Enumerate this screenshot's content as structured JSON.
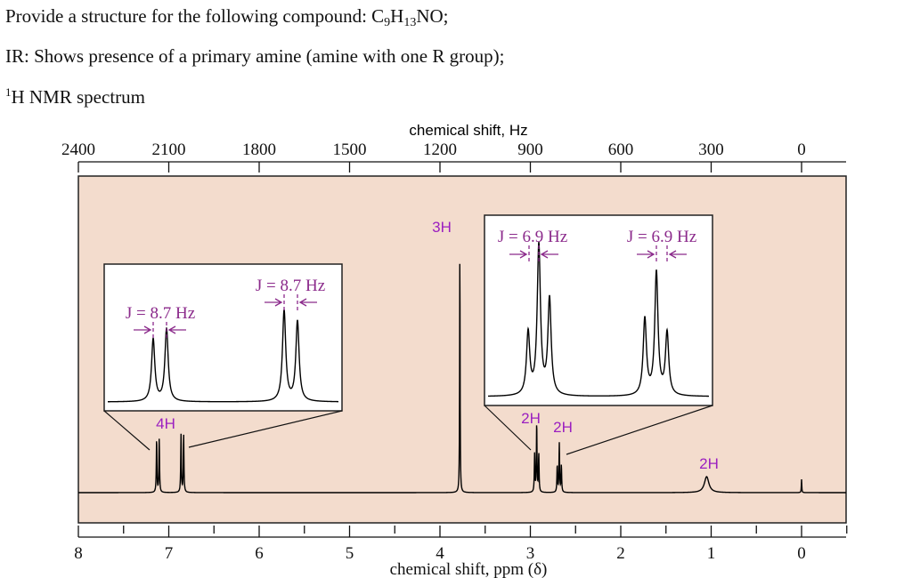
{
  "question": {
    "line1_text": "Provide a structure for the following compound: C",
    "line1_sub1": "9",
    "line1_mid": "H",
    "line1_sub2": "13",
    "line1_end": "NO;",
    "line2": "IR: Shows presence of a primary amine (amine with one R group);",
    "line3_sup": "1",
    "line3": "H NMR spectrum"
  },
  "chart_data": {
    "type": "line",
    "title": "",
    "x_top_label": "chemical shift, Hz",
    "x_bottom_label": "chemical shift, ppm (δ)",
    "x_top_ticks": [
      "2400",
      "2100",
      "1800",
      "1500",
      "1200",
      "900",
      "600",
      "300",
      "0"
    ],
    "x_bottom_ticks": [
      "8",
      "7",
      "6",
      "5",
      "4",
      "3",
      "2",
      "1",
      "0"
    ],
    "xlim_ppm": [
      8.0,
      -0.5
    ],
    "spectrometer_mhz": 300,
    "peaks": [
      {
        "ppm": 7.12,
        "height": 0.6,
        "integration": "4H",
        "multiplet": "doublet",
        "J_hz": 8.7
      },
      {
        "ppm": 6.85,
        "height": 0.65,
        "integration": "",
        "multiplet": "doublet",
        "J_hz": 8.7
      },
      {
        "ppm": 3.78,
        "height": 2.75,
        "integration": "3H",
        "multiplet": "singlet"
      },
      {
        "ppm": 2.93,
        "height": 0.78,
        "integration": "2H",
        "multiplet": "triplet",
        "J_hz": 6.9
      },
      {
        "ppm": 2.68,
        "height": 0.55,
        "integration": "2H",
        "multiplet": "triplet",
        "J_hz": 6.9
      },
      {
        "ppm": 1.05,
        "height": 0.18,
        "integration": "2H",
        "multiplet": "broad singlet"
      },
      {
        "ppm": 0.0,
        "height": 0.15,
        "integration": "",
        "multiplet": "TMS"
      }
    ],
    "insets": [
      {
        "labels": [
          "J = 8.7 Hz",
          "J = 8.7 Hz"
        ]
      },
      {
        "labels": [
          "J = 6.9 Hz",
          "J = 6.9 Hz"
        ]
      }
    ],
    "colors": {
      "background": "#f3dccd",
      "integration": "#9b1fc0",
      "coupling": "#8b2a8b",
      "trace": "#000000"
    }
  }
}
